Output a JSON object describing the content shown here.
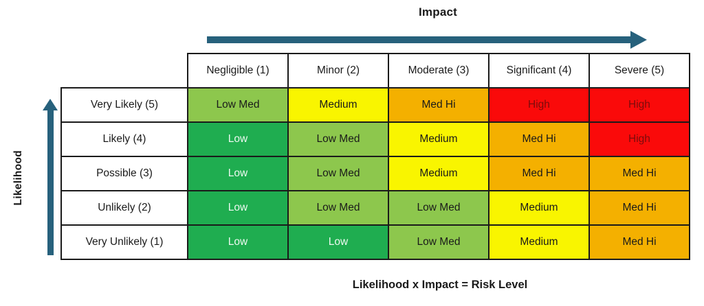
{
  "colors": {
    "arrow": "#27617c",
    "grid_border": "#1a1a1a",
    "levels": {
      "low": "#1fad50",
      "low_med": "#8dc74d",
      "medium": "#f9f500",
      "med_hi": "#f4b000",
      "high": "#fa0a0a"
    },
    "level_text": {
      "low": "#eef9f1",
      "low_med": "#1a1a1a",
      "medium": "#1a1a1a",
      "med_hi": "#1a1a1a",
      "high": "#7b0c0c"
    }
  },
  "chart_data": {
    "type": "heatmap",
    "x_axis_title": "Impact",
    "y_axis_title": "Likelihood",
    "caption": "Likelihood x Impact = Risk Level",
    "legend_position": "none",
    "grid": true,
    "columns": [
      "Negligible (1)",
      "Minor (2)",
      "Moderate (3)",
      "Significant (4)",
      "Severe (5)"
    ],
    "column_values": [
      1,
      2,
      3,
      4,
      5
    ],
    "row_values": [
      5,
      4,
      3,
      2,
      1
    ],
    "rows": [
      {
        "label": "Very Likely (5)",
        "cells": [
          {
            "label": "Low Med",
            "level": "low_med"
          },
          {
            "label": "Medium",
            "level": "medium"
          },
          {
            "label": "Med Hi",
            "level": "med_hi"
          },
          {
            "label": "High",
            "level": "high"
          },
          {
            "label": "High",
            "level": "high"
          }
        ]
      },
      {
        "label": "Likely (4)",
        "cells": [
          {
            "label": "Low",
            "level": "low"
          },
          {
            "label": "Low Med",
            "level": "low_med"
          },
          {
            "label": "Medium",
            "level": "medium"
          },
          {
            "label": "Med Hi",
            "level": "med_hi"
          },
          {
            "label": "High",
            "level": "high"
          }
        ]
      },
      {
        "label": "Possible (3)",
        "cells": [
          {
            "label": "Low",
            "level": "low"
          },
          {
            "label": "Low Med",
            "level": "low_med"
          },
          {
            "label": "Medium",
            "level": "medium"
          },
          {
            "label": "Med Hi",
            "level": "med_hi"
          },
          {
            "label": "Med Hi",
            "level": "med_hi"
          }
        ]
      },
      {
        "label": "Unlikely (2)",
        "cells": [
          {
            "label": "Low",
            "level": "low"
          },
          {
            "label": "Low Med",
            "level": "low_med"
          },
          {
            "label": "Low Med",
            "level": "low_med"
          },
          {
            "label": "Medium",
            "level": "medium"
          },
          {
            "label": "Med Hi",
            "level": "med_hi"
          }
        ]
      },
      {
        "label": "Very Unlikely (1)",
        "cells": [
          {
            "label": "Low",
            "level": "low"
          },
          {
            "label": "Low",
            "level": "low"
          },
          {
            "label": "Low Med",
            "level": "low_med"
          },
          {
            "label": "Medium",
            "level": "medium"
          },
          {
            "label": "Med Hi",
            "level": "med_hi"
          }
        ]
      }
    ]
  }
}
